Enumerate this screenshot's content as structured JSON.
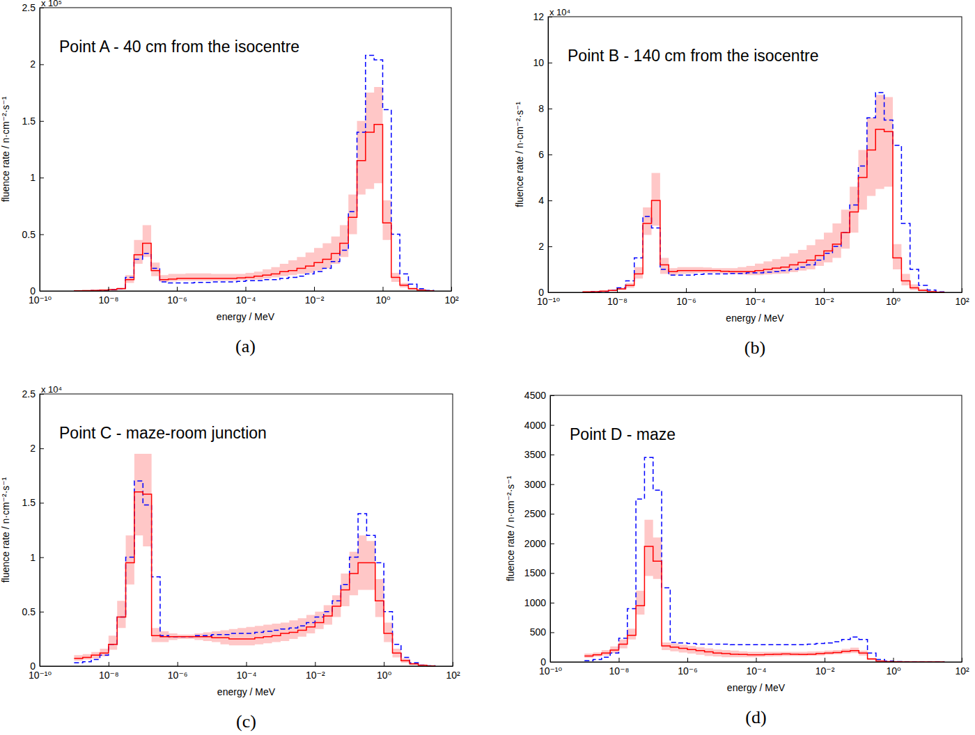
{
  "chart_data": [
    {
      "type": "line",
      "title": "Point A - 40 cm from the isocentre",
      "panel_label": "(a)",
      "x_label": "energy / MeV",
      "y_label": "fluence rate / n·cm⁻²·s⁻¹",
      "y_scale_label": "x 10⁵",
      "log": "x",
      "xlim": [
        1e-10,
        100
      ],
      "xticks": [
        {
          "value": 1e-10,
          "label": "10⁻¹⁰"
        },
        {
          "value": 1e-08,
          "label": "10⁻⁸"
        },
        {
          "value": 1e-06,
          "label": "10⁻⁶"
        },
        {
          "value": 0.0001,
          "label": "10⁻⁴"
        },
        {
          "value": 0.01,
          "label": "10⁻²"
        },
        {
          "value": 1,
          "label": "10⁰"
        },
        {
          "value": 100,
          "label": "10²"
        }
      ],
      "ylim": [
        0,
        2.5
      ],
      "yticks": [
        0,
        0.5,
        1,
        1.5,
        2,
        2.5
      ],
      "bins": [
        1e-09,
        1.78e-09,
        3.16e-09,
        5.62e-09,
        1e-08,
        1.78e-08,
        3.16e-08,
        5.62e-08,
        1e-07,
        1.78e-07,
        3.16e-07,
        5.62e-07,
        1e-06,
        1.78e-06,
        3.16e-06,
        5.62e-06,
        1e-05,
        1.78e-05,
        3.16e-05,
        5.62e-05,
        0.0001,
        0.000178,
        0.000316,
        0.000562,
        0.001,
        0.00178,
        0.00316,
        0.00562,
        0.01,
        0.0178,
        0.0316,
        0.0562,
        0.1,
        0.178,
        0.316,
        0.562,
        1,
        1.78,
        3.16,
        5.62,
        10,
        17.8,
        31.6
      ],
      "series": [
        {
          "color": "#ff0000",
          "line_style": "solid",
          "values": [
            0.002,
            0.003,
            0.005,
            0.008,
            0.012,
            0.02,
            0.1,
            0.32,
            0.42,
            0.18,
            0.1,
            0.105,
            0.11,
            0.11,
            0.11,
            0.11,
            0.11,
            0.11,
            0.11,
            0.115,
            0.12,
            0.13,
            0.14,
            0.15,
            0.17,
            0.18,
            0.2,
            0.22,
            0.25,
            0.28,
            0.33,
            0.42,
            0.65,
            1.15,
            1.4,
            1.47,
            0.6,
            0.12,
            0.05,
            0.02,
            0.008,
            0.002
          ],
          "lower": [
            0.001,
            0.002,
            0.003,
            0.006,
            0.01,
            0.015,
            0.07,
            0.24,
            0.3,
            0.13,
            0.08,
            0.085,
            0.09,
            0.09,
            0.09,
            0.09,
            0.09,
            0.09,
            0.09,
            0.095,
            0.1,
            0.1,
            0.11,
            0.12,
            0.13,
            0.14,
            0.15,
            0.16,
            0.18,
            0.2,
            0.24,
            0.3,
            0.5,
            0.85,
            0.9,
            0.95,
            0.45,
            0.08,
            0.03,
            0.01,
            0.004,
            0.001
          ],
          "upper": [
            0.003,
            0.004,
            0.007,
            0.011,
            0.016,
            0.03,
            0.14,
            0.45,
            0.58,
            0.25,
            0.14,
            0.15,
            0.15,
            0.155,
            0.155,
            0.155,
            0.15,
            0.15,
            0.15,
            0.15,
            0.16,
            0.17,
            0.19,
            0.21,
            0.24,
            0.27,
            0.3,
            0.34,
            0.38,
            0.42,
            0.48,
            0.58,
            0.85,
            1.5,
            1.75,
            1.8,
            0.8,
            0.16,
            0.07,
            0.03,
            0.012,
            0.003
          ]
        },
        {
          "color": "#0000ff",
          "line_style": "dashed",
          "values": [
            0.001,
            0.002,
            0.003,
            0.006,
            0.01,
            0.02,
            0.12,
            0.28,
            0.33,
            0.2,
            0.08,
            0.07,
            0.07,
            0.07,
            0.075,
            0.075,
            0.08,
            0.08,
            0.08,
            0.085,
            0.09,
            0.09,
            0.1,
            0.1,
            0.11,
            0.12,
            0.13,
            0.15,
            0.17,
            0.2,
            0.26,
            0.36,
            0.7,
            1.4,
            2.08,
            2.04,
            1.6,
            0.5,
            0.15,
            0.06,
            0.02,
            0.005
          ]
        }
      ]
    },
    {
      "type": "line",
      "title": "Point B - 140 cm from the isocentre",
      "panel_label": "(b)",
      "x_label": "energy / MeV",
      "y_label": "fluence rate / n·cm⁻²·s⁻¹",
      "y_scale_label": "x 10⁴",
      "log": "x",
      "xlim": [
        1e-10,
        100
      ],
      "xticks": [
        {
          "value": 1e-10,
          "label": "10⁻¹⁰"
        },
        {
          "value": 1e-08,
          "label": "10⁻⁸"
        },
        {
          "value": 1e-06,
          "label": "10⁻⁶"
        },
        {
          "value": 0.0001,
          "label": "10⁻⁴"
        },
        {
          "value": 0.01,
          "label": "10⁻²"
        },
        {
          "value": 1,
          "label": "10⁰"
        },
        {
          "value": 100,
          "label": "10²"
        }
      ],
      "ylim": [
        0,
        12
      ],
      "yticks": [
        0,
        2,
        4,
        6,
        8,
        10,
        12
      ],
      "bins": [
        1e-09,
        1.78e-09,
        3.16e-09,
        5.62e-09,
        1e-08,
        1.78e-08,
        3.16e-08,
        5.62e-08,
        1e-07,
        1.78e-07,
        3.16e-07,
        5.62e-07,
        1e-06,
        1.78e-06,
        3.16e-06,
        5.62e-06,
        1e-05,
        1.78e-05,
        3.16e-05,
        5.62e-05,
        0.0001,
        0.000178,
        0.000316,
        0.000562,
        0.001,
        0.00178,
        0.00316,
        0.00562,
        0.01,
        0.0178,
        0.0316,
        0.0562,
        0.1,
        0.178,
        0.316,
        0.562,
        1,
        1.78,
        3.16,
        5.62,
        10,
        17.8,
        31.6
      ],
      "series": [
        {
          "color": "#ff0000",
          "line_style": "solid",
          "values": [
            0.02,
            0.03,
            0.05,
            0.08,
            0.15,
            0.3,
            0.8,
            3.0,
            4.0,
            1.2,
            0.9,
            0.95,
            0.95,
            0.95,
            0.95,
            0.95,
            0.92,
            0.9,
            0.9,
            0.9,
            0.95,
            1.0,
            1.05,
            1.1,
            1.2,
            1.3,
            1.4,
            1.6,
            1.8,
            2.1,
            2.6,
            3.5,
            5.0,
            6.2,
            7.1,
            7.0,
            1.5,
            0.5,
            0.2,
            0.08,
            0.03,
            0.01
          ],
          "lower": [
            0.01,
            0.02,
            0.03,
            0.05,
            0.1,
            0.2,
            0.6,
            2.5,
            2.9,
            0.8,
            0.75,
            0.8,
            0.82,
            0.85,
            0.85,
            0.85,
            0.82,
            0.8,
            0.78,
            0.75,
            0.75,
            0.78,
            0.8,
            0.82,
            0.88,
            0.95,
            1.0,
            1.15,
            1.3,
            1.5,
            1.9,
            2.6,
            3.6,
            4.2,
            4.5,
            4.6,
            1.0,
            0.3,
            0.1,
            0.04,
            0.01,
            0.005
          ],
          "upper": [
            0.03,
            0.04,
            0.07,
            0.12,
            0.2,
            0.4,
            1.1,
            3.7,
            5.2,
            1.5,
            1.05,
            1.1,
            1.1,
            1.1,
            1.08,
            1.05,
            1.05,
            1.05,
            1.1,
            1.15,
            1.25,
            1.35,
            1.45,
            1.55,
            1.7,
            1.85,
            2.05,
            2.3,
            2.6,
            3.0,
            3.6,
            4.6,
            6.2,
            7.6,
            8.6,
            8.5,
            2.1,
            0.8,
            0.35,
            0.15,
            0.06,
            0.02
          ]
        },
        {
          "color": "#0000ff",
          "line_style": "dashed",
          "values": [
            0.01,
            0.02,
            0.04,
            0.08,
            0.2,
            0.5,
            1.5,
            3.3,
            2.8,
            1.0,
            0.75,
            0.75,
            0.75,
            0.78,
            0.8,
            0.8,
            0.8,
            0.82,
            0.82,
            0.85,
            0.85,
            0.88,
            0.9,
            0.95,
            1.0,
            1.1,
            1.2,
            1.4,
            1.7,
            2.0,
            2.6,
            3.8,
            5.5,
            7.6,
            8.7,
            7.5,
            6.4,
            3.0,
            1.0,
            0.3,
            0.1,
            0.02
          ]
        }
      ]
    },
    {
      "type": "line",
      "title": "Point C - maze-room junction",
      "panel_label": "(c)",
      "x_label": "energy / MeV",
      "y_label": "fluence rate / n·cm⁻²·s⁻¹",
      "y_scale_label": "x 10⁴",
      "log": "x",
      "xlim": [
        1e-10,
        100
      ],
      "xticks": [
        {
          "value": 1e-10,
          "label": "10⁻¹⁰"
        },
        {
          "value": 1e-08,
          "label": "10⁻⁸"
        },
        {
          "value": 1e-06,
          "label": "10⁻⁶"
        },
        {
          "value": 0.0001,
          "label": "10⁻⁴"
        },
        {
          "value": 0.01,
          "label": "10⁻²"
        },
        {
          "value": 1,
          "label": "10⁰"
        },
        {
          "value": 100,
          "label": "10²"
        }
      ],
      "ylim": [
        0,
        2.5
      ],
      "yticks": [
        0,
        0.5,
        1,
        1.5,
        2,
        2.5
      ],
      "bins": [
        1e-09,
        1.78e-09,
        3.16e-09,
        5.62e-09,
        1e-08,
        1.78e-08,
        3.16e-08,
        5.62e-08,
        1e-07,
        1.78e-07,
        3.16e-07,
        5.62e-07,
        1e-06,
        1.78e-06,
        3.16e-06,
        5.62e-06,
        1e-05,
        1.78e-05,
        3.16e-05,
        5.62e-05,
        0.0001,
        0.000178,
        0.000316,
        0.000562,
        0.001,
        0.00178,
        0.00316,
        0.00562,
        0.01,
        0.0178,
        0.0316,
        0.0562,
        0.1,
        0.178,
        0.316,
        0.562,
        1,
        1.78,
        3.16,
        5.62,
        10,
        17.8,
        31.6
      ],
      "series": [
        {
          "color": "#ff0000",
          "line_style": "solid",
          "values": [
            0.07,
            0.08,
            0.1,
            0.12,
            0.2,
            0.45,
            0.95,
            1.6,
            1.58,
            0.28,
            0.27,
            0.27,
            0.27,
            0.27,
            0.27,
            0.27,
            0.26,
            0.26,
            0.25,
            0.25,
            0.25,
            0.26,
            0.27,
            0.28,
            0.3,
            0.31,
            0.33,
            0.36,
            0.4,
            0.46,
            0.55,
            0.7,
            0.85,
            0.95,
            0.95,
            0.6,
            0.3,
            0.12,
            0.05,
            0.02,
            0.008,
            0.002
          ],
          "lower": [
            0.05,
            0.06,
            0.07,
            0.09,
            0.15,
            0.35,
            0.75,
            1.2,
            1.1,
            0.22,
            0.22,
            0.24,
            0.25,
            0.25,
            0.24,
            0.23,
            0.22,
            0.2,
            0.19,
            0.19,
            0.19,
            0.2,
            0.21,
            0.22,
            0.23,
            0.25,
            0.27,
            0.3,
            0.34,
            0.38,
            0.45,
            0.55,
            0.65,
            0.7,
            0.7,
            0.45,
            0.22,
            0.08,
            0.03,
            0.01,
            0.004,
            0.001
          ],
          "upper": [
            0.1,
            0.11,
            0.13,
            0.16,
            0.28,
            0.6,
            1.2,
            1.95,
            1.95,
            0.35,
            0.32,
            0.3,
            0.29,
            0.29,
            0.3,
            0.31,
            0.32,
            0.33,
            0.34,
            0.35,
            0.36,
            0.37,
            0.38,
            0.39,
            0.4,
            0.42,
            0.44,
            0.47,
            0.5,
            0.56,
            0.65,
            0.85,
            1.05,
            1.2,
            1.15,
            0.8,
            0.4,
            0.16,
            0.07,
            0.03,
            0.012,
            0.004
          ]
        },
        {
          "color": "#0000ff",
          "line_style": "dashed",
          "values": [
            0.03,
            0.04,
            0.06,
            0.1,
            0.2,
            0.45,
            1.0,
            1.7,
            1.48,
            0.82,
            0.28,
            0.27,
            0.27,
            0.27,
            0.28,
            0.28,
            0.29,
            0.29,
            0.3,
            0.3,
            0.3,
            0.31,
            0.32,
            0.33,
            0.34,
            0.35,
            0.37,
            0.4,
            0.45,
            0.5,
            0.6,
            0.75,
            1.0,
            1.4,
            1.2,
            0.95,
            0.5,
            0.2,
            0.08,
            0.03,
            0.01,
            0.003
          ]
        }
      ]
    },
    {
      "type": "line",
      "title": "Point D - maze",
      "panel_label": "(d)",
      "x_label": "energy / MeV",
      "y_label": "fluence rate / n·cm⁻²·s⁻¹",
      "log": "x",
      "xlim": [
        1e-10,
        100
      ],
      "xticks": [
        {
          "value": 1e-10,
          "label": "10⁻¹⁰"
        },
        {
          "value": 1e-08,
          "label": "10⁻⁸"
        },
        {
          "value": 1e-06,
          "label": "10⁻⁶"
        },
        {
          "value": 0.0001,
          "label": "10⁻⁴"
        },
        {
          "value": 0.01,
          "label": "10⁻²"
        },
        {
          "value": 1,
          "label": "10⁰"
        },
        {
          "value": 100,
          "label": "10²"
        }
      ],
      "ylim": [
        0,
        4500
      ],
      "yticks": [
        0,
        500,
        1000,
        1500,
        2000,
        2500,
        3000,
        3500,
        4000,
        4500
      ],
      "bins": [
        1e-09,
        1.78e-09,
        3.16e-09,
        5.62e-09,
        1e-08,
        1.78e-08,
        3.16e-08,
        5.62e-08,
        1e-07,
        1.78e-07,
        3.16e-07,
        5.62e-07,
        1e-06,
        1.78e-06,
        3.16e-06,
        5.62e-06,
        1e-05,
        1.78e-05,
        3.16e-05,
        5.62e-05,
        0.0001,
        0.000178,
        0.000316,
        0.000562,
        0.001,
        0.00178,
        0.00316,
        0.00562,
        0.01,
        0.0178,
        0.0316,
        0.0562,
        0.1,
        0.178,
        0.316,
        0.562,
        1,
        1.78,
        3.16,
        5.62,
        10,
        17.8,
        31.6
      ],
      "series": [
        {
          "color": "#ff0000",
          "line_style": "solid",
          "values": [
            100,
            120,
            150,
            200,
            300,
            450,
            950,
            1950,
            1700,
            270,
            250,
            230,
            210,
            190,
            170,
            150,
            140,
            130,
            125,
            120,
            120,
            125,
            130,
            135,
            130,
            125,
            130,
            140,
            150,
            160,
            180,
            190,
            150,
            50,
            15,
            5,
            2,
            1,
            0,
            0,
            0,
            0
          ],
          "lower": [
            70,
            90,
            110,
            150,
            230,
            380,
            800,
            1450,
            1400,
            200,
            180,
            160,
            140,
            120,
            100,
            90,
            80,
            80,
            80,
            80,
            85,
            90,
            95,
            100,
            100,
            100,
            105,
            110,
            120,
            130,
            140,
            150,
            110,
            35,
            10,
            3,
            1,
            0,
            0,
            0,
            0,
            0
          ],
          "upper": [
            140,
            160,
            200,
            260,
            380,
            560,
            1200,
            2400,
            2100,
            330,
            310,
            290,
            270,
            250,
            230,
            210,
            200,
            190,
            180,
            170,
            170,
            170,
            170,
            170,
            170,
            170,
            175,
            180,
            190,
            200,
            220,
            240,
            190,
            70,
            20,
            8,
            3,
            2,
            0,
            0,
            0,
            0
          ]
        },
        {
          "color": "#0000ff",
          "line_style": "dashed",
          "values": [
            20,
            40,
            80,
            150,
            400,
            900,
            2750,
            3450,
            2900,
            1250,
            330,
            320,
            310,
            300,
            300,
            300,
            300,
            290,
            290,
            290,
            290,
            290,
            290,
            290,
            290,
            290,
            300,
            310,
            320,
            340,
            380,
            420,
            380,
            150,
            40,
            15,
            5,
            2,
            0,
            0,
            0,
            0
          ]
        }
      ]
    }
  ]
}
